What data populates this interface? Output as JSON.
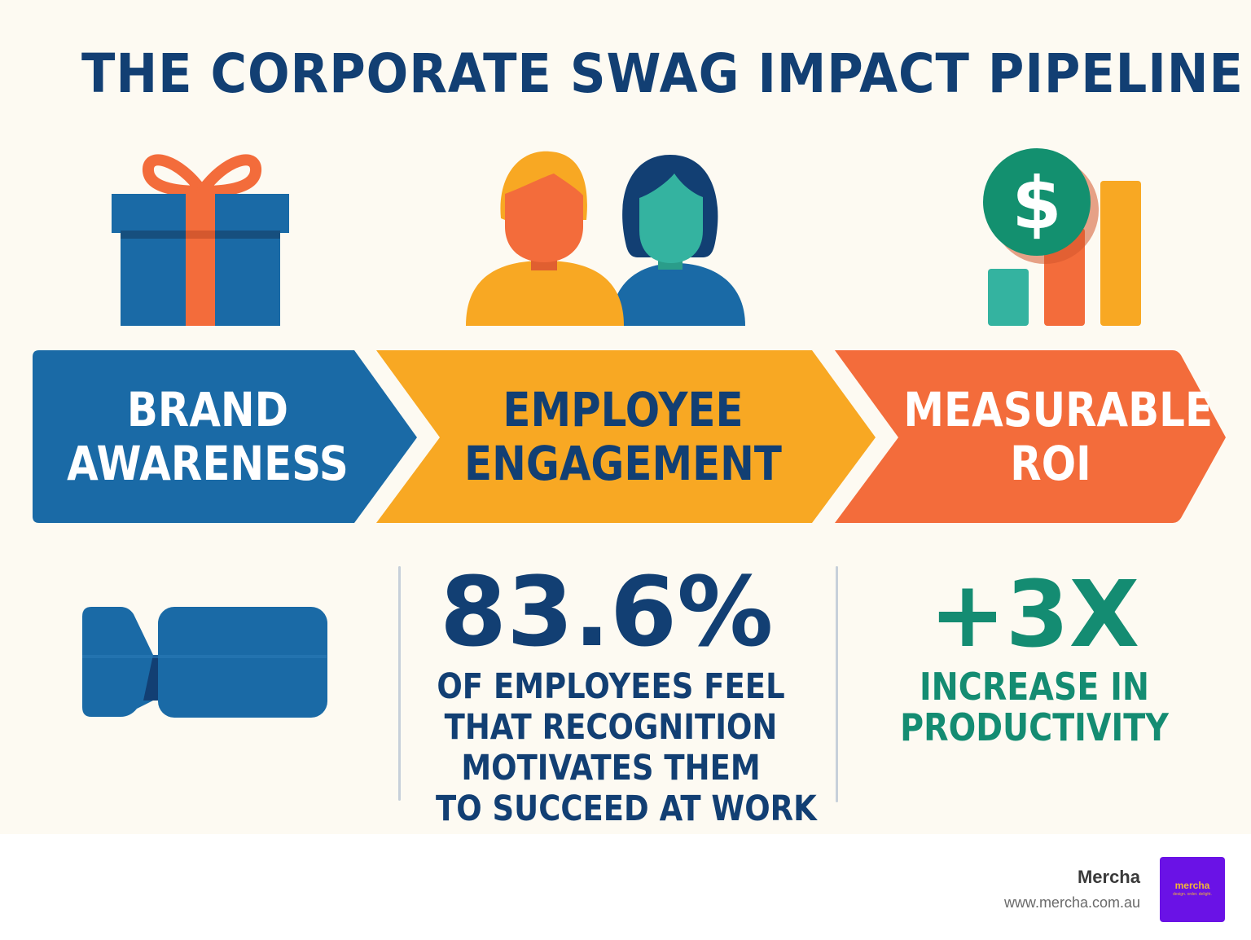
{
  "title": "THE CORPORATE SWAG IMPACT PIPELINE",
  "stages": [
    {
      "line1": "BRAND",
      "line2": "AWARENESS",
      "color": "#1a6aa6",
      "text_color": "#ffffff"
    },
    {
      "line1": "EMPLOYEE",
      "line2": "ENGAGEMENT",
      "color": "#f8a823",
      "text_color": "#123f73"
    },
    {
      "line1": "MEASURABLE",
      "line2": "ROI",
      "color": "#f36c3b",
      "text_color": "#ffffff"
    }
  ],
  "icons": {
    "stage1": "gift-icon",
    "stage2": "people-icon",
    "stage3": "money-chart-icon",
    "stat1": "video-camera-icon"
  },
  "stats": {
    "engagement": {
      "value": "83.6%",
      "lines": [
        "OF EMPLOYEES FEEL",
        "THAT RECOGNITION",
        "MOTIVATES THEM",
        "TO SUCCEED AT WORK"
      ],
      "color": "#123f73"
    },
    "roi": {
      "value": "+3X",
      "lines": [
        "INCREASE IN",
        "PRODUCTIVITY"
      ],
      "color": "#148c72"
    }
  },
  "footer": {
    "brand": "Mercha",
    "url": "www.mercha.com.au",
    "logo_word": "mercha",
    "logo_tagline": "design. order. delight."
  }
}
